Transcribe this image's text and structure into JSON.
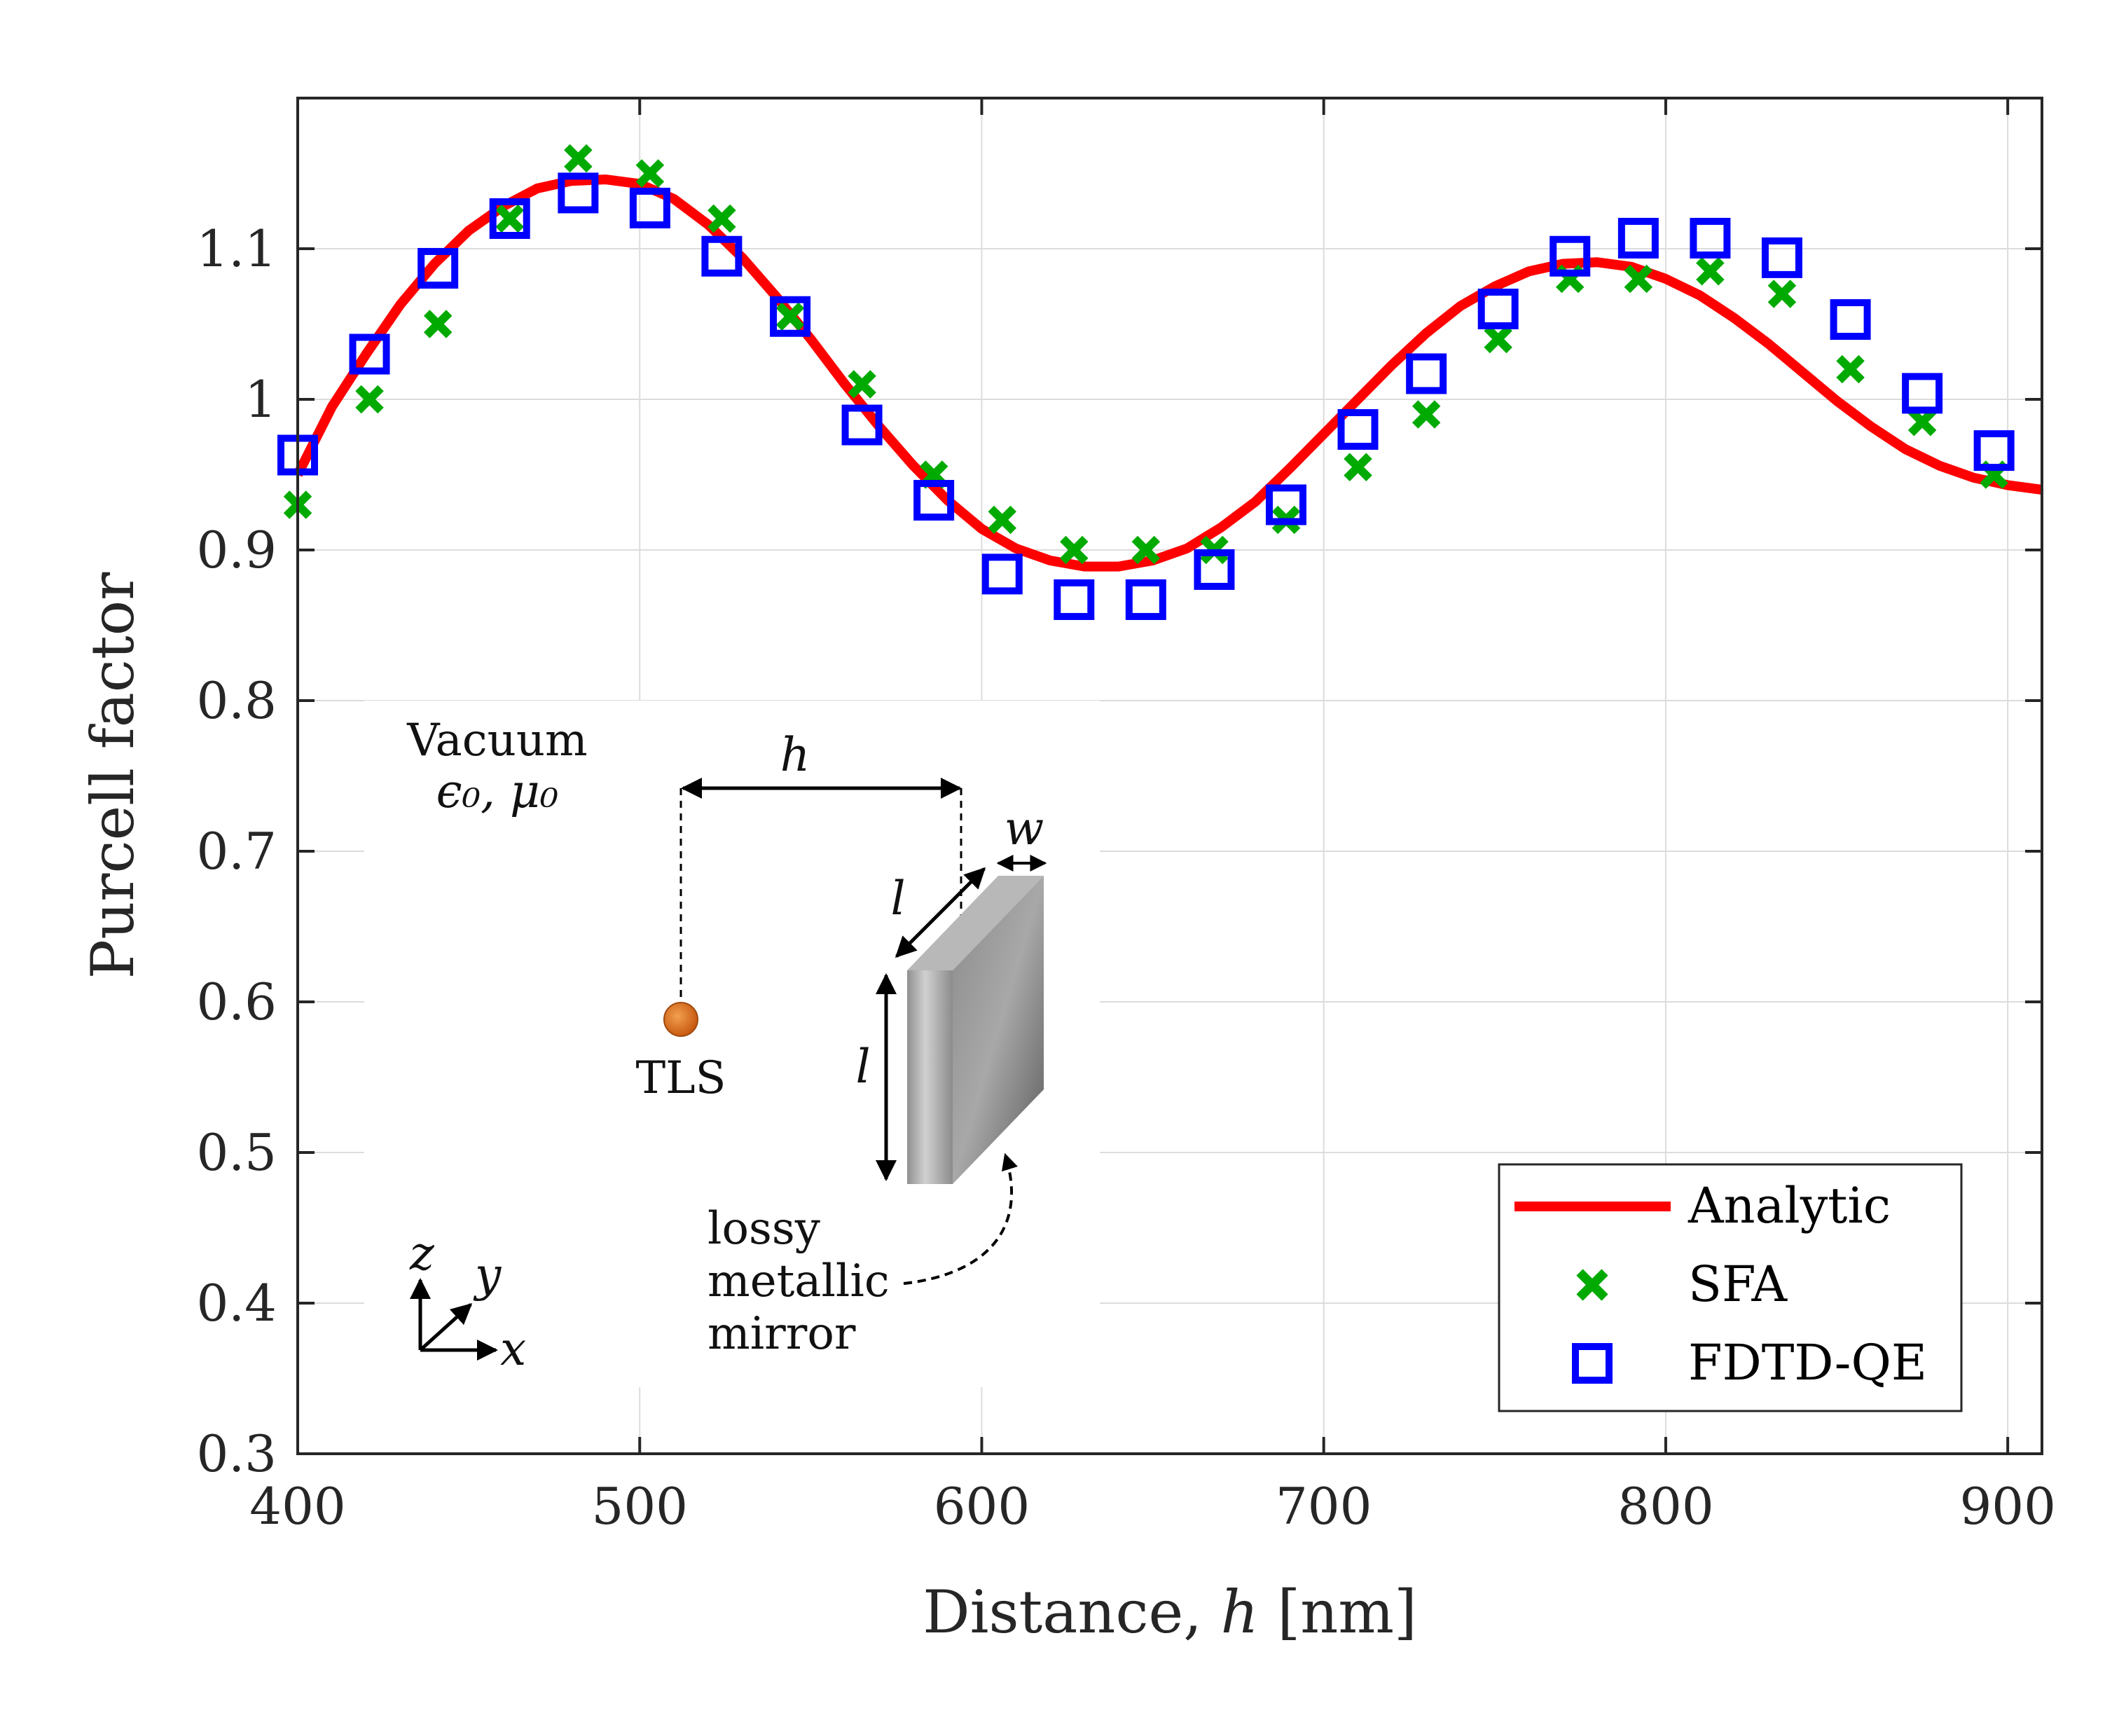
{
  "chart_data": {
    "type": "line",
    "xlabel_prefix": "Distance, ",
    "xlabel_var": "h",
    "xlabel_unit": " [nm]",
    "ylabel": "Purcell factor",
    "xlim": [
      400,
      910
    ],
    "ylim": [
      0.3,
      1.2
    ],
    "xticks": [
      400,
      500,
      600,
      700,
      800,
      900
    ],
    "xtick_labels": [
      "400",
      "500",
      "600",
      "700",
      "800",
      "900"
    ],
    "yticks": [
      0.3,
      0.4,
      0.5,
      0.6,
      0.7,
      0.8,
      0.9,
      1.0,
      1.1
    ],
    "ytick_labels": [
      "0.3",
      "0.4",
      "0.5",
      "0.6",
      "0.7",
      "0.8",
      "0.9",
      "1",
      "1.1"
    ],
    "grid": true,
    "legend_position": "bottom-right",
    "series": [
      {
        "name": "Analytic",
        "style": "line",
        "color": "#ff0000",
        "x": [
          400,
          410,
          420,
          430,
          440,
          450,
          460,
          470,
          480,
          490,
          500,
          510,
          520,
          530,
          540,
          550,
          560,
          570,
          580,
          590,
          600,
          610,
          620,
          630,
          640,
          650,
          660,
          670,
          680,
          690,
          700,
          710,
          720,
          730,
          740,
          750,
          760,
          770,
          780,
          790,
          800,
          810,
          820,
          830,
          840,
          850,
          860,
          870,
          880,
          890,
          900,
          910
        ],
        "y": [
          0.95,
          0.995,
          1.03,
          1.063,
          1.09,
          1.112,
          1.128,
          1.14,
          1.145,
          1.146,
          1.143,
          1.133,
          1.116,
          1.094,
          1.068,
          1.04,
          1.01,
          0.982,
          0.956,
          0.933,
          0.914,
          0.901,
          0.893,
          0.889,
          0.889,
          0.893,
          0.901,
          0.915,
          0.932,
          0.954,
          0.977,
          1.0,
          1.023,
          1.044,
          1.062,
          1.075,
          1.085,
          1.09,
          1.091,
          1.088,
          1.08,
          1.069,
          1.054,
          1.037,
          1.018,
          0.999,
          0.982,
          0.967,
          0.956,
          0.948,
          0.943,
          0.94
        ]
      },
      {
        "name": "SFA",
        "style": "x-marker",
        "color": "#00aa00",
        "x": [
          400,
          421,
          441,
          462,
          482,
          503,
          524,
          544,
          565,
          586,
          606,
          627,
          648,
          668,
          689,
          710,
          730,
          751,
          772,
          792,
          813,
          834,
          854,
          875,
          896
        ],
        "y": [
          0.93,
          1.0,
          1.05,
          1.12,
          1.16,
          1.15,
          1.12,
          1.055,
          1.01,
          0.95,
          0.92,
          0.9,
          0.9,
          0.9,
          0.92,
          0.955,
          0.99,
          1.04,
          1.08,
          1.08,
          1.085,
          1.07,
          1.02,
          0.985,
          0.95
        ]
      },
      {
        "name": "FDTD-QE",
        "style": "square-marker",
        "color": "#0000ff",
        "x": [
          400,
          421,
          441,
          462,
          482,
          503,
          524,
          544,
          565,
          586,
          606,
          627,
          648,
          668,
          689,
          710,
          730,
          751,
          772,
          792,
          813,
          834,
          854,
          875,
          896
        ],
        "y": [
          0.963,
          1.03,
          1.087,
          1.12,
          1.137,
          1.127,
          1.095,
          1.055,
          0.983,
          0.933,
          0.884,
          0.867,
          0.867,
          0.887,
          0.93,
          0.98,
          1.017,
          1.06,
          1.095,
          1.107,
          1.107,
          1.094,
          1.053,
          1.004,
          0.966
        ]
      }
    ],
    "inset": {
      "medium": "Vacuum",
      "medium_params": "ϵ₀, μ₀",
      "source_label": "TLS",
      "distance_symbol": "h",
      "width_symbol": "w",
      "length_symbol": "l",
      "mirror_label_lines": [
        "lossy",
        "metallic",
        "mirror"
      ],
      "axes": [
        "z",
        "y",
        "x"
      ]
    }
  }
}
